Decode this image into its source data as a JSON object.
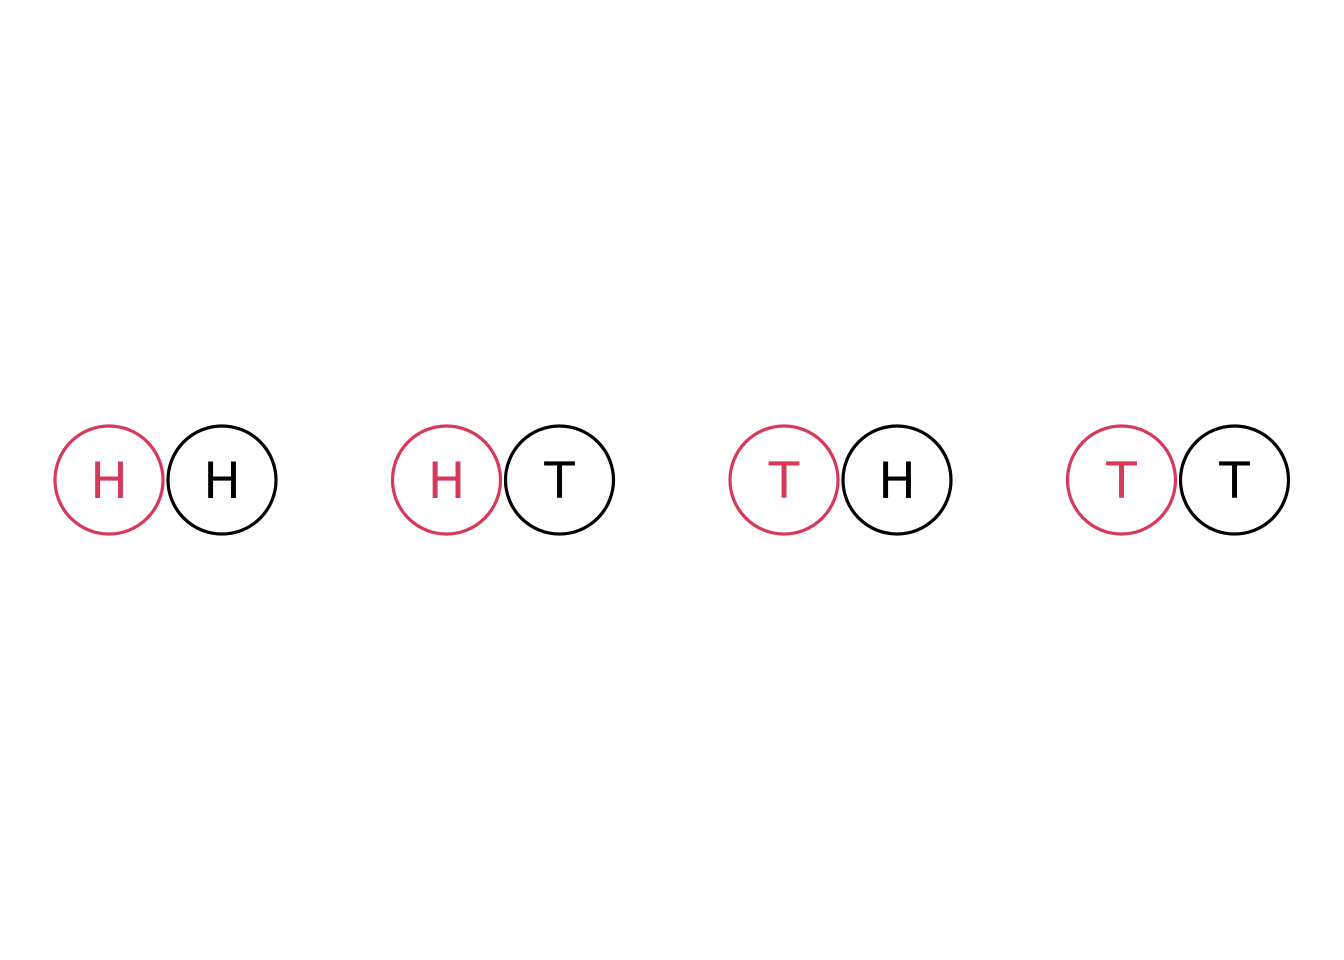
{
  "colors": {
    "first_coin": "#d6395a",
    "second_coin": "#000000",
    "background": "#ffffff"
  },
  "outcomes": [
    {
      "first": "H",
      "second": "H"
    },
    {
      "first": "H",
      "second": "T"
    },
    {
      "first": "T",
      "second": "H"
    },
    {
      "first": "T",
      "second": "T"
    }
  ]
}
